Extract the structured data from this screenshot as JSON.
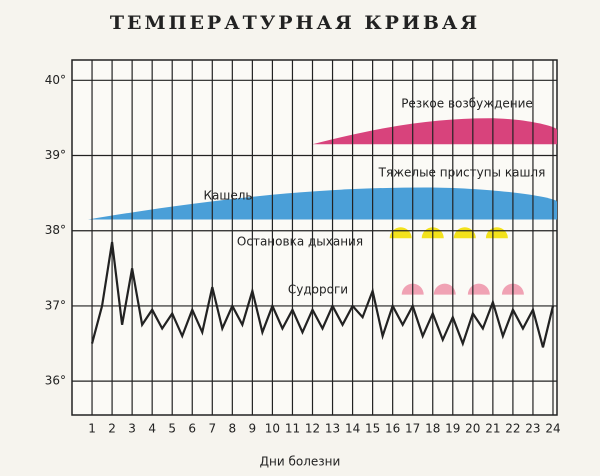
{
  "chart_data": {
    "type": "line",
    "title": "ТЕМПЕРАТУРНАЯ КРИВАЯ",
    "xlabel": "Дни болезни",
    "xlim": [
      0,
      24.2
    ],
    "xticks": [
      1,
      2,
      3,
      4,
      5,
      6,
      7,
      8,
      9,
      10,
      11,
      12,
      13,
      14,
      15,
      16,
      17,
      18,
      19,
      20,
      21,
      22,
      23,
      24
    ],
    "ylim": [
      35.55,
      40.27
    ],
    "yticks": [
      {
        "value": 36,
        "label": "36°"
      },
      {
        "value": 37,
        "label": "37°"
      },
      {
        "value": 38,
        "label": "38°"
      },
      {
        "value": 39,
        "label": "39°"
      },
      {
        "value": 40,
        "label": "40°"
      }
    ],
    "grid": true,
    "series": [
      {
        "color": "#222222",
        "x": [
          1,
          1.5,
          2,
          2.5,
          3,
          3.5,
          4,
          4.5,
          5,
          5.5,
          6,
          6.5,
          7,
          7.5,
          8,
          8.5,
          9,
          9.5,
          10,
          10.5,
          11,
          11.5,
          12,
          12.5,
          13,
          13.5,
          14,
          14.5,
          15,
          15.5,
          16,
          16.5,
          17,
          17.5,
          18,
          18.5,
          19,
          19.5,
          20,
          20.5,
          21,
          21.5,
          22,
          22.5,
          23,
          23.5,
          24
        ],
        "values": [
          36.5,
          37.0,
          37.85,
          36.75,
          37.5,
          36.75,
          36.95,
          36.7,
          36.9,
          36.6,
          36.95,
          36.65,
          37.25,
          36.7,
          37.0,
          36.75,
          37.2,
          36.65,
          37.0,
          36.7,
          36.95,
          36.65,
          36.95,
          36.7,
          37.0,
          36.75,
          37.0,
          36.85,
          37.2,
          36.6,
          37.0,
          36.75,
          37.0,
          36.6,
          36.9,
          36.55,
          36.85,
          36.5,
          36.9,
          36.7,
          37.05,
          36.6,
          36.95,
          36.7,
          36.95,
          36.45,
          37.0
        ]
      }
    ],
    "bands": [
      {
        "label": "Резкое возбуждение",
        "color": "#d8437c",
        "start": 12.0,
        "end": 24.2,
        "level": 39.15
      },
      {
        "label": "Кашель",
        "color": "#4a9fd8",
        "start": 0.8,
        "end": 24.2,
        "level": 38.15
      }
    ],
    "annotations": [
      "Тяжелые приступы кашля"
    ],
    "markers": [
      {
        "label": "Остановка дыхания",
        "color": "#f3e21c",
        "level": 37.9,
        "days": [
          16.4,
          18.0,
          19.6,
          21.2
        ]
      },
      {
        "label": "Судороги",
        "color": "#f0a2b4",
        "level": 37.15,
        "days": [
          17.0,
          18.6,
          20.3,
          22.0
        ]
      }
    ]
  }
}
